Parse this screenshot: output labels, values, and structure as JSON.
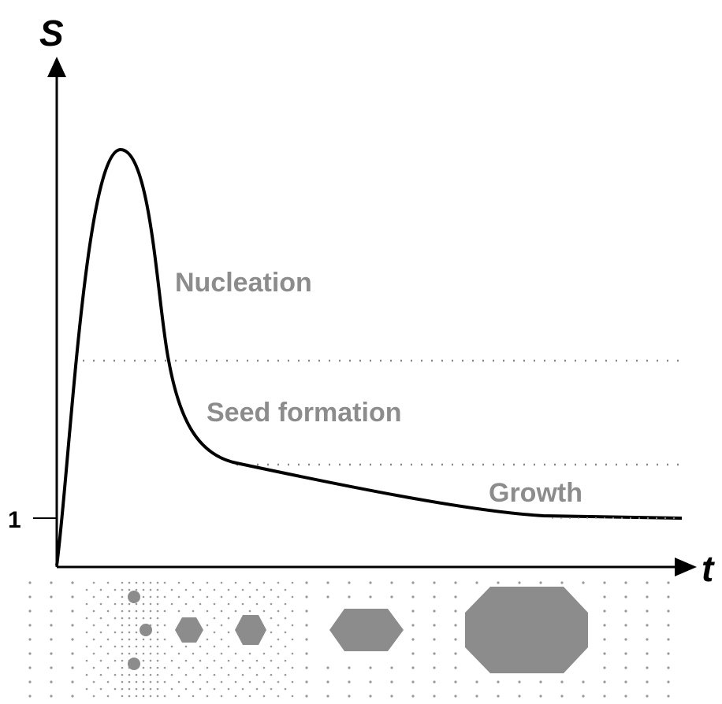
{
  "axes": {
    "y_label": "S",
    "x_label": "t",
    "y_tick": "1"
  },
  "stages": [
    {
      "label": "Nucleation"
    },
    {
      "label": "Seed formation"
    },
    {
      "label": "Growth"
    }
  ]
}
